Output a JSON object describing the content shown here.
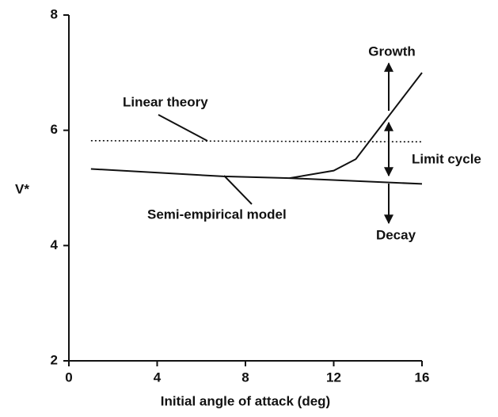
{
  "chart_data": {
    "type": "line",
    "xlabel": "Initial angle of attack (deg)",
    "ylabel": "V*",
    "xlim": [
      0,
      16
    ],
    "xticks": [
      0,
      4,
      8,
      12,
      16
    ],
    "ylim": [
      2,
      8
    ],
    "yticks": [
      2,
      4,
      6,
      8
    ],
    "series": [
      {
        "name": "Linear theory",
        "color": "#111111",
        "dash": true,
        "x": [
          1,
          16
        ],
        "values": [
          5.82,
          5.8
        ]
      },
      {
        "name": "Semi-empirical model",
        "color": "#111111",
        "x": [
          1,
          7,
          10,
          16
        ],
        "values": [
          5.33,
          5.2,
          5.17,
          5.07
        ]
      },
      {
        "color": "#111111",
        "x": [
          10,
          12,
          13,
          16
        ],
        "values": [
          5.17,
          5.3,
          5.5,
          7.0
        ]
      }
    ],
    "annotations": [
      "Growth",
      "Limit cycle",
      "Decay"
    ]
  }
}
